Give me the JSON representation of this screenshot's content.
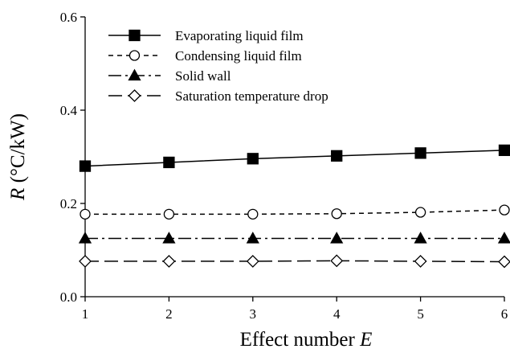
{
  "chart_data": {
    "type": "line",
    "title": "",
    "xlabel": {
      "text": "Effect number ",
      "italic": "E"
    },
    "ylabel": {
      "italic": "R",
      "text": " (°C/kW)"
    },
    "x": [
      1,
      2,
      3,
      4,
      5,
      6
    ],
    "xlim": [
      1,
      6
    ],
    "ylim": [
      0,
      0.6
    ],
    "xticks": [
      "1",
      "2",
      "3",
      "4",
      "5",
      "6"
    ],
    "yticks": [
      "0.0",
      "0.2",
      "0.4",
      "0.6"
    ],
    "grid": false,
    "legend_position": "top-left",
    "series": [
      {
        "name": "Evaporating liquid film",
        "marker": "filled-square",
        "line": "solid",
        "values": [
          0.28,
          0.288,
          0.296,
          0.302,
          0.308,
          0.314
        ]
      },
      {
        "name": "Condensing liquid film",
        "marker": "open-circle",
        "line": "dashed",
        "values": [
          0.177,
          0.177,
          0.177,
          0.178,
          0.181,
          0.186
        ]
      },
      {
        "name": "Solid wall",
        "marker": "filled-triangle",
        "line": "dash-dot",
        "values": [
          0.125,
          0.125,
          0.125,
          0.125,
          0.125,
          0.125
        ]
      },
      {
        "name": "Saturation temperature drop",
        "marker": "open-diamond",
        "line": "long-dash",
        "values": [
          0.076,
          0.076,
          0.076,
          0.077,
          0.076,
          0.075
        ]
      }
    ],
    "colors": {
      "line": "#000000",
      "open_fill": "#ffffff"
    }
  }
}
